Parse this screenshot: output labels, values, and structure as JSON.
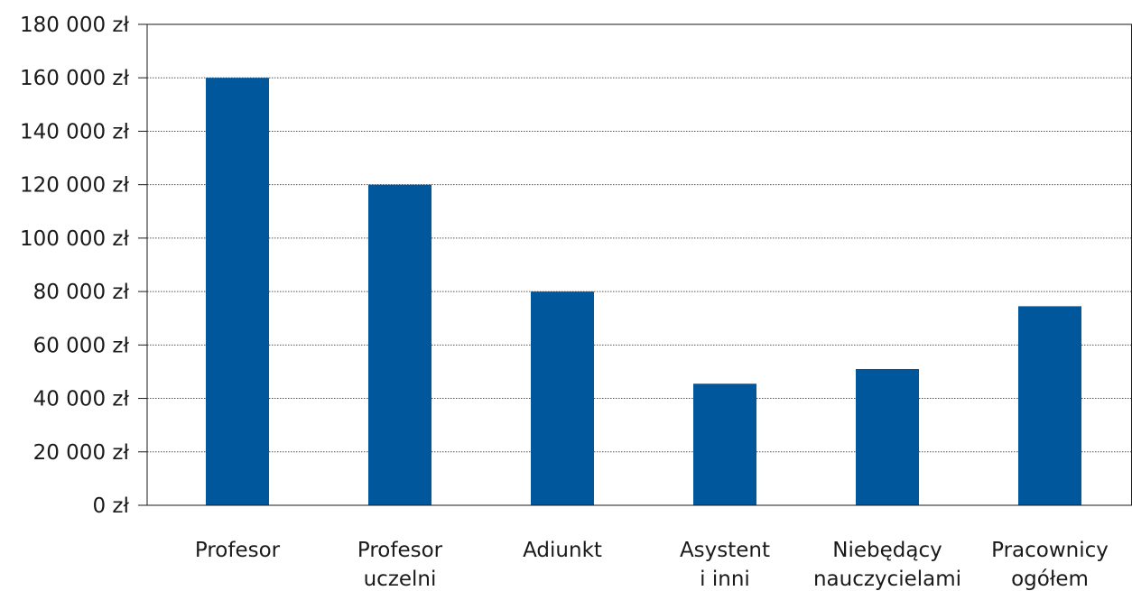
{
  "chart_data": {
    "type": "bar",
    "categories": [
      [
        "Profesor"
      ],
      [
        "Profesor",
        "uczelni"
      ],
      [
        "Adiunkt"
      ],
      [
        "Asystent",
        "i inni"
      ],
      [
        "Niebędący",
        "nauczycielami"
      ],
      [
        "Pracownicy",
        "ogółem"
      ]
    ],
    "values": [
      160000,
      120000,
      80000,
      45500,
      51000,
      74500
    ],
    "ylim": [
      0,
      180000
    ],
    "yticks": [
      0,
      20000,
      40000,
      60000,
      80000,
      100000,
      120000,
      140000,
      160000,
      180000
    ],
    "ytick_labels": [
      "0 zł",
      "20 000 zł",
      "40 000 zł",
      "60 000 zł",
      "80 000 zł",
      "100 000 zł",
      "120 000 zł",
      "140 000 zł",
      "160 000 zł",
      "180 000 zł"
    ],
    "grid": true,
    "bar_color": "#00579c",
    "title": "",
    "xlabel": "",
    "ylabel": ""
  }
}
